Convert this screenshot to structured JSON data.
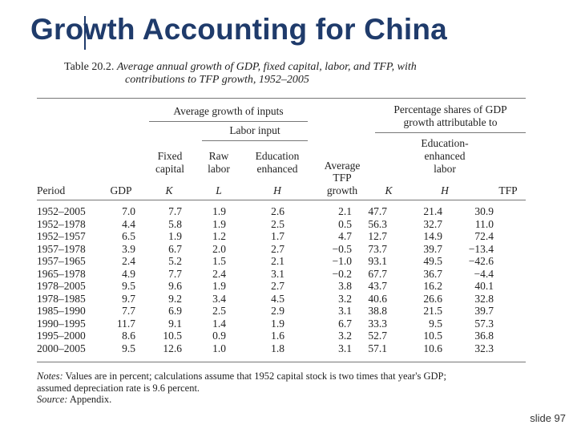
{
  "title": "Growth Accounting for China",
  "caption": {
    "label": "Table 20.2.",
    "text": "Average annual growth of GDP, fixed capital, labor, and TFP, with",
    "text2": "contributions to TFP growth, 1952–2005"
  },
  "headers": {
    "group_inputs": "Average growth of inputs",
    "group_labor": "Labor input",
    "group_shares_1": "Percentage shares of GDP",
    "group_shares_2": "growth attributable to",
    "edu_enh_1": "Education-",
    "edu_enh_2": "enhanced",
    "edu_enh_3": "labor",
    "fixed_1": "Fixed",
    "fixed_2": "capital",
    "raw_1": "Raw",
    "raw_2": "labor",
    "edu_1": "Education",
    "edu_2": "enhanced",
    "tfp_1": "Average",
    "tfp_2": "TFP",
    "tfp_3": "growth",
    "period": "Period",
    "gdp": "GDP",
    "k": "K",
    "l": "L",
    "h": "H",
    "sk": "K",
    "sh": "H",
    "stfp": "TFP"
  },
  "rows": [
    [
      "1952–2005",
      "7.0",
      "7.7",
      "1.9",
      "2.6",
      "2.1",
      "47.7",
      "21.4",
      "30.9"
    ],
    [
      "1952–1978",
      "4.4",
      "5.8",
      "1.9",
      "2.5",
      "0.5",
      "56.3",
      "32.7",
      "11.0"
    ],
    [
      "1952–1957",
      "6.5",
      "1.9",
      "1.2",
      "1.7",
      "4.7",
      "12.7",
      "14.9",
      "72.4"
    ],
    [
      "1957–1978",
      "3.9",
      "6.7",
      "2.0",
      "2.7",
      "−0.5",
      "73.7",
      "39.7",
      "−13.4"
    ],
    [
      "1957–1965",
      "2.4",
      "5.2",
      "1.5",
      "2.1",
      "−1.0",
      "93.1",
      "49.5",
      "−42.6"
    ],
    [
      "1965–1978",
      "4.9",
      "7.7",
      "2.4",
      "3.1",
      "−0.2",
      "67.7",
      "36.7",
      "−4.4"
    ],
    [
      "1978–2005",
      "9.5",
      "9.6",
      "1.9",
      "2.7",
      "3.8",
      "43.7",
      "16.2",
      "40.1"
    ],
    [
      "1978–1985",
      "9.7",
      "9.2",
      "3.4",
      "4.5",
      "3.2",
      "40.6",
      "26.6",
      "32.8"
    ],
    [
      "1985–1990",
      "7.7",
      "6.9",
      "2.5",
      "2.9",
      "3.1",
      "38.8",
      "21.5",
      "39.7"
    ],
    [
      "1990–1995",
      "11.7",
      "9.1",
      "1.4",
      "1.9",
      "6.7",
      "33.3",
      "9.5",
      "57.3"
    ],
    [
      "1995–2000",
      "8.6",
      "10.5",
      "0.9",
      "1.6",
      "3.2",
      "52.7",
      "10.5",
      "36.8"
    ],
    [
      "2000–2005",
      "9.5",
      "12.6",
      "1.0",
      "1.8",
      "3.1",
      "57.1",
      "10.6",
      "32.3"
    ]
  ],
  "notes": {
    "label": "Notes:",
    "text": "Values are in percent; calculations assume that 1952 capital stock is two times that year's GDP;",
    "text2": "assumed depreciation rate is 9.6 percent.",
    "source_label": "Source:",
    "source_text": "Appendix."
  },
  "slide_number": "slide 97"
}
